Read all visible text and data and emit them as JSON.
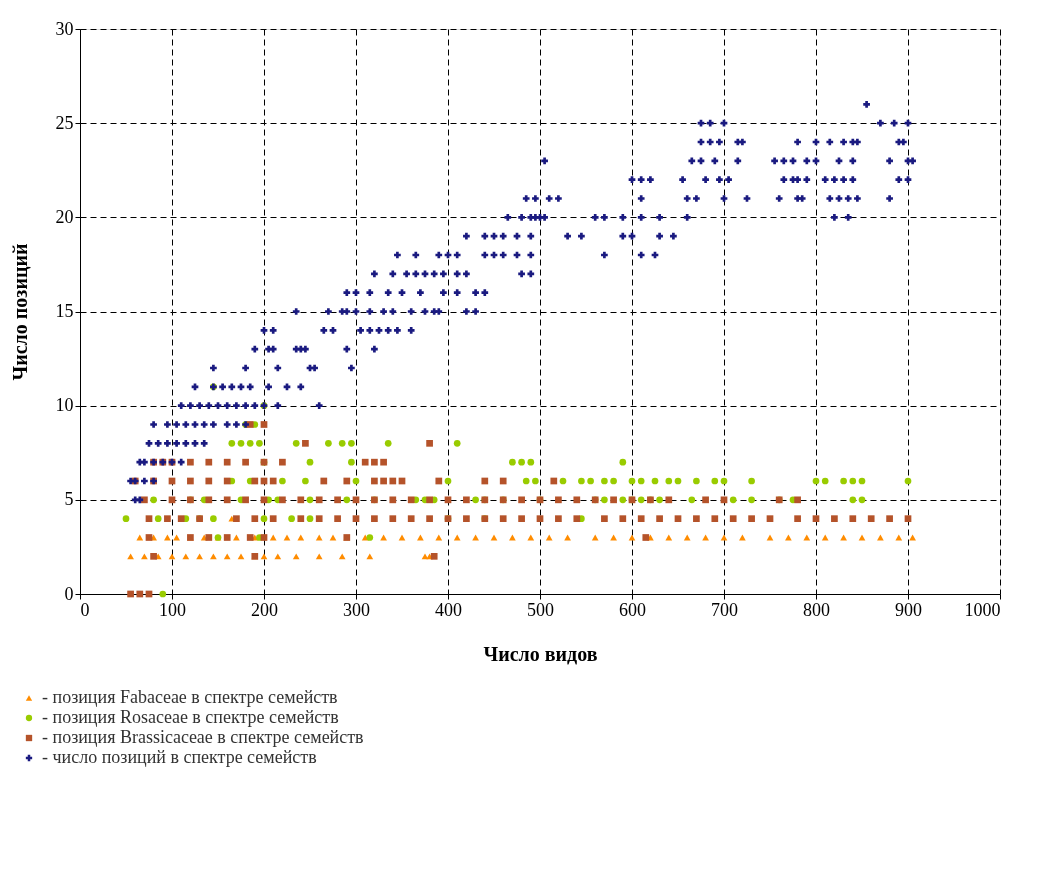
{
  "chart_data": {
    "type": "scatter",
    "xlabel": "Число видов",
    "ylabel": "Число позиций",
    "xlim": [
      0,
      1000
    ],
    "xticks": [
      0,
      100,
      200,
      300,
      400,
      500,
      600,
      700,
      800,
      900,
      1000
    ],
    "ylim": [
      0,
      30
    ],
    "yticks": [
      0,
      5,
      10,
      15,
      20,
      25,
      30
    ],
    "grid": true,
    "legend": "bottom left",
    "series": [
      {
        "name": "- позиция Fabaceae в спектре семейств",
        "color": "#ff8c00",
        "marker": "triangle",
        "x": [
          165,
          65,
          80,
          95,
          105,
          120,
          135,
          150,
          170,
          190,
          210,
          225,
          240,
          260,
          275,
          290,
          310,
          330,
          350,
          370,
          390,
          410,
          430,
          450,
          470,
          490,
          510,
          530,
          560,
          580,
          600,
          620,
          640,
          660,
          680,
          700,
          720,
          750,
          770,
          790,
          810,
          830,
          850,
          870,
          890,
          905,
          55,
          70,
          85,
          100,
          115,
          130,
          145,
          160,
          175,
          190,
          200,
          215,
          235,
          260,
          285,
          315,
          375,
          380
        ],
        "values": [
          4,
          3,
          3,
          3,
          3,
          3,
          3,
          3,
          3,
          3,
          3,
          3,
          3,
          3,
          3,
          3,
          3,
          3,
          3,
          3,
          3,
          3,
          3,
          3,
          3,
          3,
          3,
          3,
          3,
          3,
          3,
          3,
          3,
          3,
          3,
          3,
          3,
          3,
          3,
          3,
          3,
          3,
          3,
          3,
          3,
          3,
          2,
          2,
          2,
          2,
          2,
          2,
          2,
          2,
          2,
          2,
          2,
          2,
          2,
          2,
          2,
          2,
          2,
          2
        ]
      },
      {
        "name": "- позиция Rosaceae в спектре семейств",
        "color": "#99cc00",
        "marker": "circle",
        "x": [
          145,
          200,
          180,
          190,
          165,
          175,
          185,
          195,
          235,
          270,
          285,
          295,
          335,
          410,
          200,
          250,
          295,
          470,
          480,
          490,
          590,
          165,
          185,
          220,
          245,
          300,
          400,
          485,
          495,
          525,
          545,
          555,
          570,
          580,
          600,
          610,
          625,
          640,
          650,
          670,
          690,
          700,
          730,
          800,
          810,
          830,
          840,
          850,
          900,
          80,
          120,
          135,
          175,
          205,
          215,
          250,
          290,
          320,
          365,
          375,
          385,
          430,
          440,
          460,
          500,
          560,
          570,
          590,
          600,
          610,
          620,
          630,
          665,
          710,
          730,
          760,
          775,
          840,
          850,
          50,
          85,
          115,
          130,
          145,
          200,
          230,
          250,
          400,
          440,
          545,
          150,
          195,
          315,
          90
        ],
        "values": [
          11,
          10,
          9,
          9,
          8,
          8,
          8,
          8,
          8,
          8,
          8,
          8,
          8,
          8,
          7,
          7,
          7,
          7,
          7,
          7,
          7,
          6,
          6,
          6,
          6,
          6,
          6,
          6,
          6,
          6,
          6,
          6,
          6,
          6,
          6,
          6,
          6,
          6,
          6,
          6,
          6,
          6,
          6,
          6,
          6,
          6,
          6,
          6,
          6,
          5,
          5,
          5,
          5,
          5,
          5,
          5,
          5,
          5,
          5,
          5,
          5,
          5,
          5,
          5,
          5,
          5,
          5,
          5,
          5,
          5,
          5,
          5,
          5,
          5,
          5,
          5,
          5,
          5,
          5,
          4,
          4,
          4,
          4,
          4,
          4,
          4,
          4,
          4,
          4,
          4,
          3,
          3,
          3,
          0
        ]
      },
      {
        "name": "- позиция Brassicaceae в спектре семейств",
        "color": "#b5532a",
        "marker": "square",
        "x": [
          185,
          200,
          245,
          380,
          80,
          90,
          100,
          120,
          140,
          160,
          180,
          200,
          220,
          310,
          320,
          330,
          60,
          80,
          100,
          120,
          140,
          160,
          190,
          200,
          210,
          265,
          290,
          320,
          330,
          340,
          350,
          390,
          440,
          460,
          515,
          70,
          100,
          120,
          140,
          160,
          180,
          200,
          220,
          240,
          260,
          280,
          300,
          320,
          340,
          360,
          380,
          400,
          420,
          440,
          460,
          480,
          500,
          520,
          540,
          560,
          580,
          600,
          620,
          640,
          680,
          700,
          760,
          780,
          75,
          95,
          110,
          130,
          170,
          190,
          210,
          240,
          260,
          280,
          300,
          320,
          340,
          360,
          380,
          400,
          420,
          440,
          460,
          480,
          500,
          520,
          540,
          570,
          590,
          610,
          630,
          650,
          670,
          690,
          710,
          730,
          750,
          780,
          800,
          820,
          840,
          860,
          880,
          900,
          75,
          120,
          140,
          160,
          185,
          200,
          290,
          615,
          80,
          190,
          385,
          55,
          65,
          75
        ],
        "values": [
          9,
          9,
          8,
          8,
          7,
          7,
          7,
          7,
          7,
          7,
          7,
          7,
          7,
          7,
          7,
          7,
          6,
          6,
          6,
          6,
          6,
          6,
          6,
          6,
          6,
          6,
          6,
          6,
          6,
          6,
          6,
          6,
          6,
          6,
          6,
          5,
          5,
          5,
          5,
          5,
          5,
          5,
          5,
          5,
          5,
          5,
          5,
          5,
          5,
          5,
          5,
          5,
          5,
          5,
          5,
          5,
          5,
          5,
          5,
          5,
          5,
          5,
          5,
          5,
          5,
          5,
          5,
          5,
          4,
          4,
          4,
          4,
          4,
          4,
          4,
          4,
          4,
          4,
          4,
          4,
          4,
          4,
          4,
          4,
          4,
          4,
          4,
          4,
          4,
          4,
          4,
          4,
          4,
          4,
          4,
          4,
          4,
          4,
          4,
          4,
          4,
          4,
          4,
          4,
          4,
          4,
          4,
          4,
          3,
          3,
          3,
          3,
          3,
          3,
          3,
          3,
          2,
          2,
          2,
          0,
          0,
          0
        ]
      },
      {
        "name": "- число позиций в спектре семейств",
        "color": "#1a1a80",
        "marker": "cross",
        "x": [
          855,
          675,
          685,
          700,
          870,
          885,
          900,
          675,
          685,
          695,
          715,
          720,
          780,
          800,
          815,
          830,
          840,
          845,
          890,
          895,
          505,
          665,
          675,
          690,
          715,
          755,
          765,
          775,
          790,
          800,
          825,
          840,
          880,
          900,
          905,
          600,
          610,
          620,
          655,
          680,
          695,
          705,
          765,
          775,
          780,
          790,
          810,
          820,
          830,
          840,
          890,
          900,
          485,
          495,
          510,
          520,
          610,
          660,
          670,
          700,
          725,
          760,
          780,
          785,
          815,
          825,
          835,
          845,
          880,
          465,
          480,
          490,
          495,
          500,
          505,
          560,
          570,
          590,
          610,
          630,
          660,
          820,
          835,
          420,
          440,
          450,
          460,
          475,
          490,
          530,
          545,
          590,
          600,
          630,
          645,
          345,
          365,
          390,
          400,
          410,
          440,
          450,
          460,
          475,
          490,
          570,
          610,
          625,
          320,
          340,
          355,
          365,
          375,
          385,
          395,
          410,
          420,
          480,
          490,
          290,
          300,
          315,
          335,
          350,
          370,
          395,
          410,
          430,
          440,
          235,
          270,
          285,
          290,
          300,
          315,
          330,
          340,
          360,
          375,
          385,
          390,
          420,
          430,
          200,
          210,
          265,
          275,
          305,
          315,
          325,
          335,
          345,
          360,
          190,
          205,
          210,
          235,
          240,
          245,
          290,
          320,
          145,
          180,
          215,
          250,
          255,
          295,
          125,
          145,
          155,
          165,
          175,
          185,
          205,
          225,
          240,
          110,
          120,
          130,
          140,
          150,
          160,
          170,
          180,
          190,
          200,
          215,
          260,
          80,
          95,
          105,
          115,
          125,
          135,
          145,
          160,
          170,
          180,
          75,
          85,
          95,
          105,
          115,
          125,
          135,
          65,
          70,
          80,
          90,
          100,
          110,
          55,
          60,
          70,
          80,
          60,
          65
        ],
        "values": [
          26,
          25,
          25,
          25,
          25,
          25,
          25,
          24,
          24,
          24,
          24,
          24,
          24,
          24,
          24,
          24,
          24,
          24,
          24,
          24,
          23,
          23,
          23,
          23,
          23,
          23,
          23,
          23,
          23,
          23,
          23,
          23,
          23,
          23,
          23,
          22,
          22,
          22,
          22,
          22,
          22,
          22,
          22,
          22,
          22,
          22,
          22,
          22,
          22,
          22,
          22,
          22,
          21,
          21,
          21,
          21,
          21,
          21,
          21,
          21,
          21,
          21,
          21,
          21,
          21,
          21,
          21,
          21,
          21,
          20,
          20,
          20,
          20,
          20,
          20,
          20,
          20,
          20,
          20,
          20,
          20,
          20,
          20,
          19,
          19,
          19,
          19,
          19,
          19,
          19,
          19,
          19,
          19,
          19,
          19,
          18,
          18,
          18,
          18,
          18,
          18,
          18,
          18,
          18,
          18,
          18,
          18,
          18,
          17,
          17,
          17,
          17,
          17,
          17,
          17,
          17,
          17,
          17,
          17,
          16,
          16,
          16,
          16,
          16,
          16,
          16,
          16,
          16,
          16,
          15,
          15,
          15,
          15,
          15,
          15,
          15,
          15,
          15,
          15,
          15,
          15,
          15,
          15,
          14,
          14,
          14,
          14,
          14,
          14,
          14,
          14,
          14,
          14,
          13,
          13,
          13,
          13,
          13,
          13,
          13,
          13,
          12,
          12,
          12,
          12,
          12,
          12,
          11,
          11,
          11,
          11,
          11,
          11,
          11,
          11,
          11,
          10,
          10,
          10,
          10,
          10,
          10,
          10,
          10,
          10,
          10,
          10,
          10,
          9,
          9,
          9,
          9,
          9,
          9,
          9,
          9,
          9,
          9,
          8,
          8,
          8,
          8,
          8,
          8,
          8,
          7,
          7,
          7,
          7,
          7,
          7,
          6,
          6,
          6,
          6,
          5,
          5
        ]
      }
    ]
  }
}
